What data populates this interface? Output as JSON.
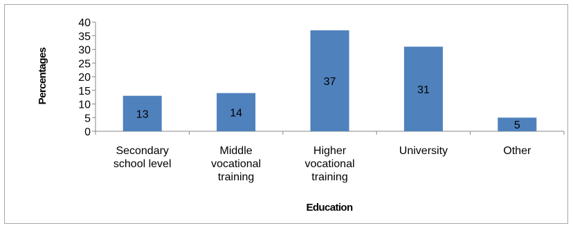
{
  "chart_data": {
    "type": "bar",
    "categories": [
      [
        "Secondary",
        "school level"
      ],
      [
        "Middle",
        "vocational",
        "training"
      ],
      [
        "Higher",
        "vocational",
        "training"
      ],
      [
        "University"
      ],
      [
        "Other"
      ]
    ],
    "values": [
      13,
      14,
      37,
      31,
      5
    ],
    "data_labels": [
      "13",
      "14",
      "37",
      "31",
      "5"
    ],
    "xlabel": "Education",
    "ylabel": "Percentages",
    "ylim": [
      0,
      40
    ],
    "yticks": [
      "0",
      "5",
      "10",
      "15",
      "20",
      "25",
      "30",
      "35",
      "40"
    ],
    "bar_color": "#4f81bd",
    "grid": false,
    "legend": "none"
  }
}
